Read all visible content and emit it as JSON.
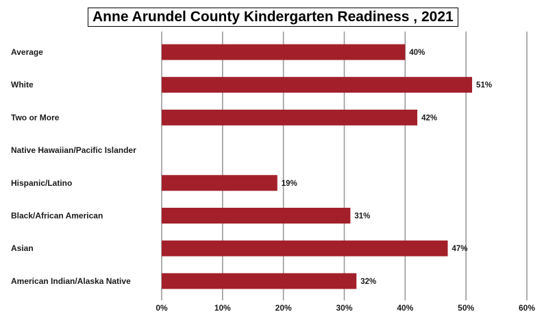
{
  "chart_data": {
    "type": "bar",
    "orientation": "horizontal",
    "title": "Anne Arundel County Kindergarten Readiness , 2021",
    "categories": [
      "Average",
      "White",
      "Two or More",
      "Native Hawaiian/Pacific Islander",
      "Hispanic/Latino",
      "Black/African American",
      "Asian",
      "American Indian/Alaska Native"
    ],
    "values": [
      40,
      51,
      42,
      null,
      19,
      31,
      47,
      32
    ],
    "data_labels": [
      "40%",
      "51%",
      "42%",
      "",
      "19%",
      "31%",
      "47%",
      "32%"
    ],
    "xlim": [
      0,
      60
    ],
    "xticks": [
      0,
      10,
      20,
      30,
      40,
      50,
      60
    ],
    "xtick_labels": [
      "0%",
      "10%",
      "20%",
      "30%",
      "40%",
      "50%",
      "60%"
    ],
    "xlabel": "",
    "ylabel": "",
    "grid": "vertical",
    "legend": "none",
    "colors": {
      "bar": "#a3202b",
      "grid": "#999999",
      "text": "#1a1a1a"
    }
  }
}
